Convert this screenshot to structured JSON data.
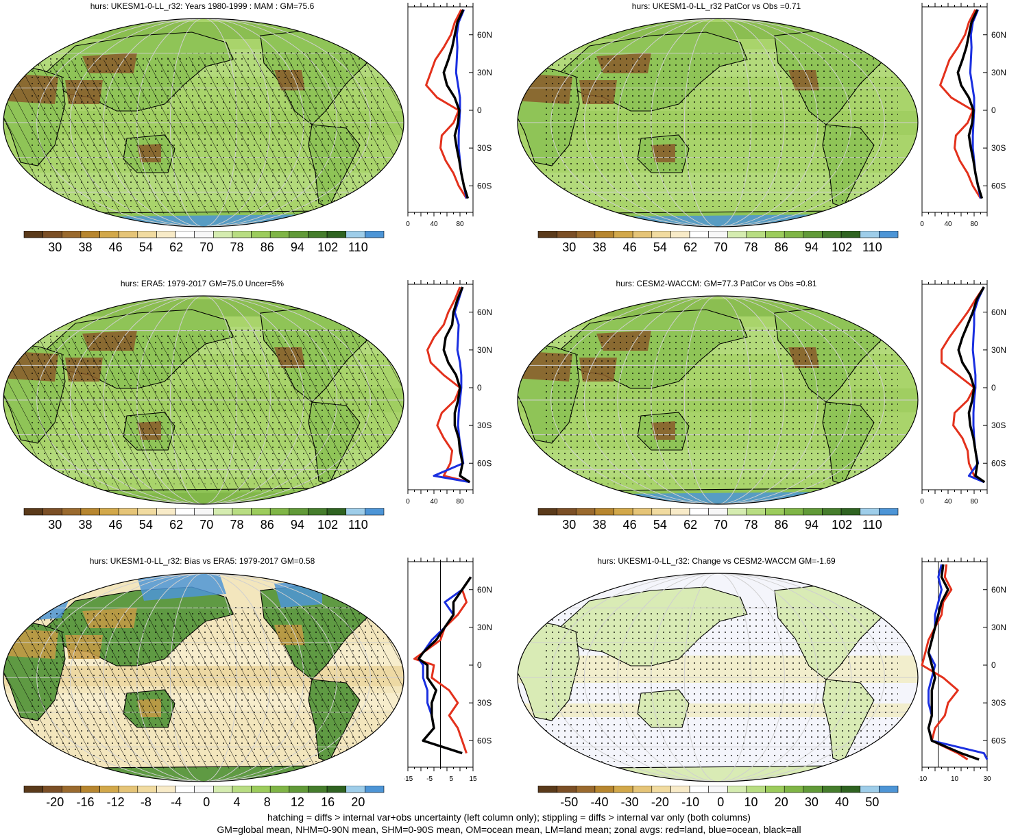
{
  "colors": {
    "brown_scale": [
      "#5a3a1a",
      "#7b4f26",
      "#9a6a2e",
      "#b7862f",
      "#d2a84a",
      "#e5c477",
      "#f1dba0",
      "#f8ebc8",
      "#ffffff",
      "#f7f7f7",
      "#d5ecb0",
      "#b8dd82",
      "#9ccc5c",
      "#7fb546",
      "#619a38",
      "#457d2c",
      "#2f6321",
      "#9ecde9",
      "#4d95d6"
    ],
    "land": "#e3311c",
    "ocean": "#1a2fe0",
    "all": "#000000"
  },
  "footer": {
    "line1": "hatching = diffs > internal var+obs uncertainty (left column only); stippling = diffs > internal var only (both columns)",
    "line2": "GM=global mean, NHM=0-90N mean, SHM=0-90S mean, OM=ocean mean, LM=land mean; zonal avgs: red=land, blue=ocean, black=all"
  },
  "chart_data": [
    {
      "type": "heatmap",
      "title": "hurs: UKESM1-0-LL_r32: Years 1980-1999 : MAM : GM=75.6",
      "colorbar_ticks": [
        "30",
        "38",
        "46",
        "54",
        "62",
        "70",
        "78",
        "86",
        "94",
        "102",
        "110"
      ],
      "zonal": {
        "unit": "%",
        "x_ticks": [
          "0",
          "40",
          "80"
        ],
        "xlim": [
          0,
          100
        ],
        "y_ticks": [
          "60N",
          "30N",
          "0",
          "30S",
          "60S"
        ],
        "lat": [
          80,
          70,
          60,
          50,
          40,
          30,
          20,
          10,
          0,
          -10,
          -20,
          -30,
          -40,
          -50,
          -60,
          -70
        ],
        "land": [
          82,
          72,
          66,
          55,
          42,
          35,
          28,
          45,
          78,
          70,
          52,
          50,
          58,
          70,
          78,
          90
        ],
        "ocean": [
          86,
          78,
          75,
          76,
          75,
          74,
          77,
          80,
          80,
          79,
          78,
          78,
          80,
          82,
          86,
          90
        ],
        "all": [
          85,
          76,
          72,
          68,
          62,
          55,
          60,
          72,
          79,
          77,
          72,
          75,
          79,
          82,
          86,
          92
        ]
      }
    },
    {
      "type": "heatmap",
      "title": "hurs: UKESM1-0-LL_r32 PatCor vs Obs =0.71",
      "colorbar_ticks": [
        "30",
        "38",
        "46",
        "54",
        "62",
        "70",
        "78",
        "86",
        "94",
        "102",
        "110"
      ],
      "zonal": {
        "unit": "%",
        "x_ticks": [
          "0",
          "40",
          "80"
        ],
        "xlim": [
          0,
          100
        ],
        "y_ticks": [
          "60N",
          "30N",
          "0",
          "30S",
          "60S"
        ],
        "lat": [
          80,
          70,
          60,
          50,
          40,
          30,
          20,
          10,
          0,
          -10,
          -20,
          -30,
          -40,
          -50,
          -60,
          -70
        ],
        "land": [
          82,
          72,
          66,
          55,
          42,
          35,
          28,
          45,
          78,
          70,
          52,
          50,
          58,
          70,
          78,
          90
        ],
        "ocean": [
          86,
          78,
          75,
          76,
          75,
          74,
          77,
          80,
          80,
          79,
          78,
          78,
          80,
          82,
          86,
          90
        ],
        "all": [
          85,
          76,
          72,
          68,
          62,
          55,
          60,
          72,
          79,
          77,
          72,
          75,
          79,
          82,
          86,
          92
        ]
      }
    },
    {
      "type": "heatmap",
      "title": "hurs: ERA5: 1979-2017 GM=75.0 Uncer=5%",
      "colorbar_ticks": [
        "30",
        "38",
        "46",
        "54",
        "62",
        "70",
        "78",
        "86",
        "94",
        "102",
        "110"
      ],
      "zonal": {
        "unit": "%",
        "x_ticks": [
          "0",
          "40",
          "80"
        ],
        "xlim": [
          0,
          100
        ],
        "y_ticks": [
          "60N",
          "30N",
          "0",
          "30S",
          "60S"
        ],
        "lat": [
          80,
          70,
          60,
          50,
          40,
          30,
          20,
          10,
          0,
          -10,
          -20,
          -30,
          -40,
          -50,
          -60,
          -70,
          -75
        ],
        "land": [
          80,
          72,
          62,
          55,
          40,
          30,
          35,
          55,
          80,
          72,
          52,
          45,
          55,
          68,
          65,
          55,
          95
        ],
        "ocean": [
          84,
          78,
          72,
          78,
          77,
          76,
          80,
          82,
          82,
          80,
          78,
          77,
          79,
          82,
          85,
          40,
          95
        ],
        "all": [
          84,
          76,
          70,
          68,
          58,
          55,
          62,
          74,
          80,
          77,
          72,
          72,
          78,
          80,
          84,
          80,
          95
        ]
      }
    },
    {
      "type": "heatmap",
      "title": "hurs: CESM2-WACCM: GM=77.3 PatCor vs Obs =0.81",
      "colorbar_ticks": [
        "30",
        "38",
        "46",
        "54",
        "62",
        "70",
        "78",
        "86",
        "94",
        "102",
        "110"
      ],
      "zonal": {
        "unit": "%",
        "x_ticks": [
          "0",
          "40",
          "80"
        ],
        "xlim": [
          0,
          100
        ],
        "y_ticks": [
          "60N",
          "30N",
          "0",
          "30S",
          "60S"
        ],
        "lat": [
          80,
          70,
          60,
          50,
          40,
          30,
          20,
          10,
          0,
          -10,
          -20,
          -30,
          -40,
          -50,
          -60,
          -70,
          -75
        ],
        "land": [
          95,
          82,
          70,
          56,
          42,
          30,
          30,
          55,
          80,
          70,
          50,
          48,
          62,
          70,
          72,
          80,
          96
        ],
        "ocean": [
          95,
          86,
          80,
          80,
          79,
          78,
          80,
          82,
          82,
          80,
          79,
          79,
          80,
          82,
          86,
          72,
          95
        ],
        "all": [
          95,
          84,
          78,
          70,
          62,
          56,
          62,
          74,
          80,
          77,
          72,
          74,
          79,
          82,
          85,
          82,
          96
        ]
      }
    },
    {
      "type": "heatmap",
      "title": "hurs: UKESM1-0-LL_r32: Bias vs ERA5: 1979-2017 GM=0.58",
      "colorbar_ticks": [
        "-20",
        "-16",
        "-12",
        "-8",
        "-4",
        "0",
        "4",
        "8",
        "12",
        "16",
        "20"
      ],
      "zonal": {
        "unit": "%",
        "x_ticks": [
          "-15",
          "-5",
          "5",
          "15"
        ],
        "xlim": [
          -15,
          15
        ],
        "y_ticks": [
          "60N",
          "30N",
          "0",
          "30S",
          "60S"
        ],
        "lat": [
          70,
          60,
          50,
          40,
          30,
          20,
          10,
          5,
          0,
          -10,
          -20,
          -30,
          -40,
          -50,
          -60,
          -70
        ],
        "land": [
          14,
          10,
          12,
          8,
          2,
          0,
          -8,
          -12,
          -3,
          -4,
          4,
          8,
          4,
          8,
          10,
          12
        ],
        "ocean": [
          14,
          10,
          2,
          6,
          2,
          -4,
          -8,
          -10,
          -8,
          -8,
          -6,
          -6,
          -4,
          -3,
          -8,
          10
        ],
        "all": [
          14,
          10,
          6,
          6,
          2,
          -2,
          -8,
          -10,
          -6,
          -6,
          -2,
          -4,
          -4,
          -3,
          -8,
          10
        ]
      }
    },
    {
      "type": "heatmap",
      "title": "hurs: UKESM1-0-LL_r32: Change vs CESM2-WACCM GM=-1.69",
      "colorbar_ticks": [
        "-50",
        "-40",
        "-30",
        "-20",
        "-10",
        "0",
        "10",
        "20",
        "30",
        "40",
        "50"
      ],
      "zonal": {
        "unit": "%",
        "x_ticks": [
          "-10",
          "10",
          "30"
        ],
        "xlim": [
          -10,
          30
        ],
        "y_ticks": [
          "60N",
          "30N",
          "0",
          "30S",
          "60S"
        ],
        "lat": [
          80,
          70,
          60,
          50,
          40,
          30,
          20,
          10,
          0,
          -10,
          -20,
          -30,
          -40,
          -50,
          -60,
          -70,
          -75
        ],
        "land": [
          5,
          4,
          8,
          3,
          2,
          -2,
          -6,
          -8,
          -10,
          3,
          12,
          6,
          4,
          -2,
          -4,
          12,
          18
        ],
        "ocean": [
          2,
          0,
          2,
          0,
          -2,
          -2,
          -4,
          -6,
          -2,
          -4,
          -6,
          -6,
          -4,
          -6,
          -4,
          28,
          30
        ],
        "all": [
          3,
          2,
          6,
          2,
          0,
          -2,
          -4,
          -6,
          -4,
          -2,
          -4,
          -4,
          -4,
          -6,
          -4,
          14,
          25
        ]
      }
    }
  ]
}
